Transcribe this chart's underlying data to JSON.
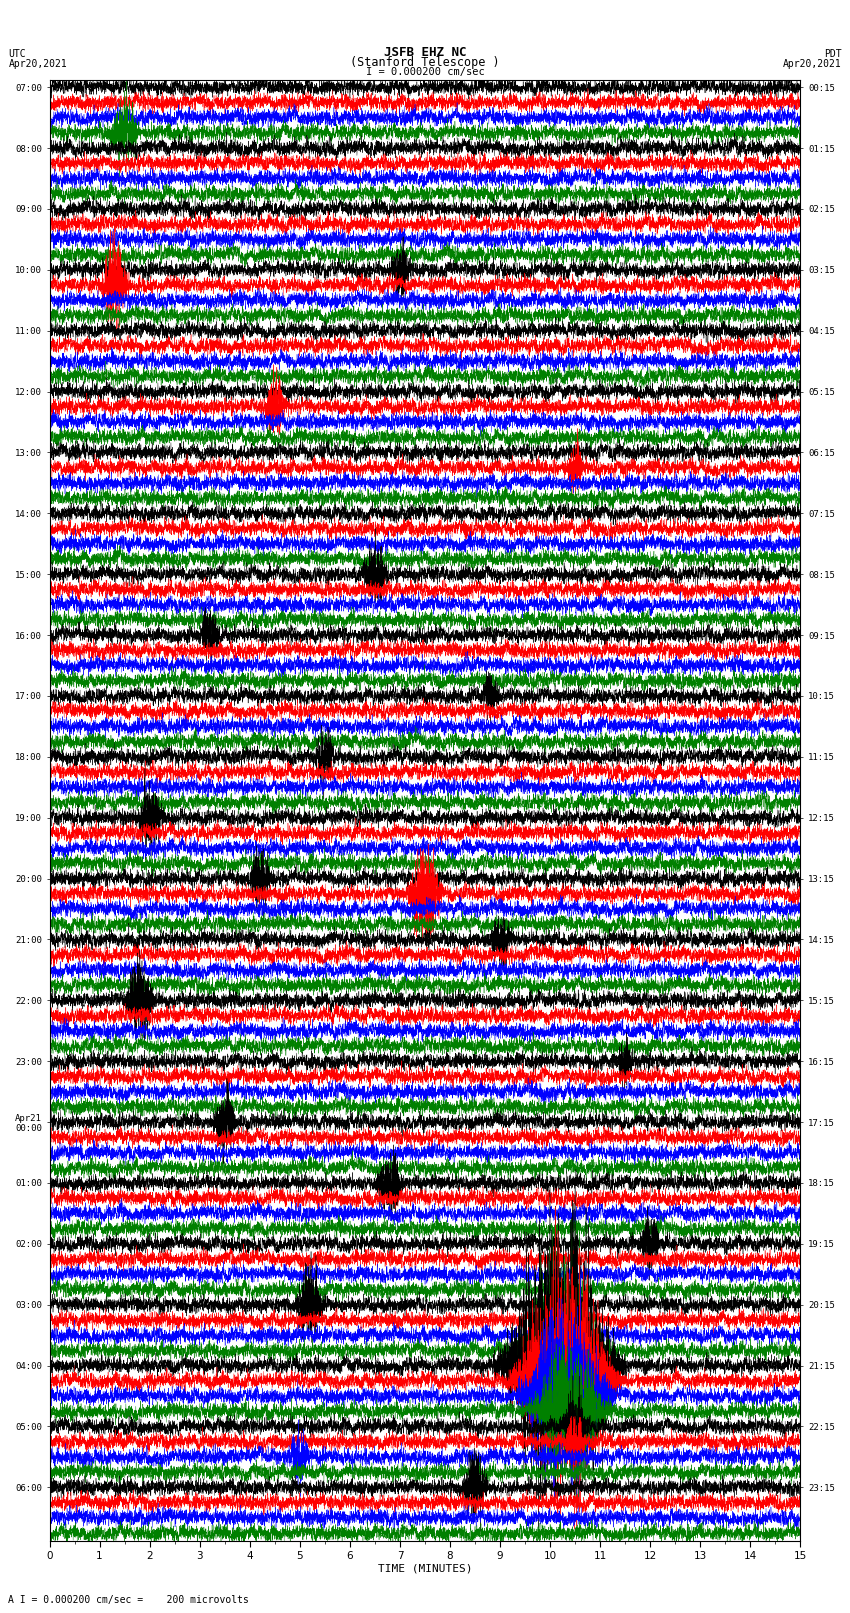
{
  "title_line1": "JSFB EHZ NC",
  "title_line2": "(Stanford Telescope )",
  "scale_label": "I = 0.000200 cm/sec",
  "bottom_label": "A I = 0.000200 cm/sec =    200 microvolts",
  "xlabel": "TIME (MINUTES)",
  "left_header_top": "UTC",
  "left_header_bot": "Apr20,2021",
  "right_header_top": "PDT",
  "right_header_bot": "Apr20,2021",
  "bg_color": "#ffffff",
  "trace_colors": [
    "black",
    "red",
    "blue",
    "green"
  ],
  "traces_per_row": 4,
  "minutes_per_row": 15,
  "total_rows": 24,
  "left_labels_utc": [
    "07:00",
    "08:00",
    "09:00",
    "10:00",
    "11:00",
    "12:00",
    "13:00",
    "14:00",
    "15:00",
    "16:00",
    "17:00",
    "18:00",
    "19:00",
    "20:00",
    "21:00",
    "22:00",
    "23:00",
    "Apr21\n00:00",
    "01:00",
    "02:00",
    "03:00",
    "04:00",
    "05:00",
    "06:00"
  ],
  "right_labels_pdt": [
    "00:15",
    "01:15",
    "02:15",
    "03:15",
    "04:15",
    "05:15",
    "06:15",
    "07:15",
    "08:15",
    "09:15",
    "10:15",
    "11:15",
    "12:15",
    "13:15",
    "14:15",
    "15:15",
    "16:15",
    "17:15",
    "18:15",
    "19:15",
    "20:15",
    "21:15",
    "22:15",
    "23:15"
  ],
  "noise_amplitude": 0.32,
  "seed": 12345
}
